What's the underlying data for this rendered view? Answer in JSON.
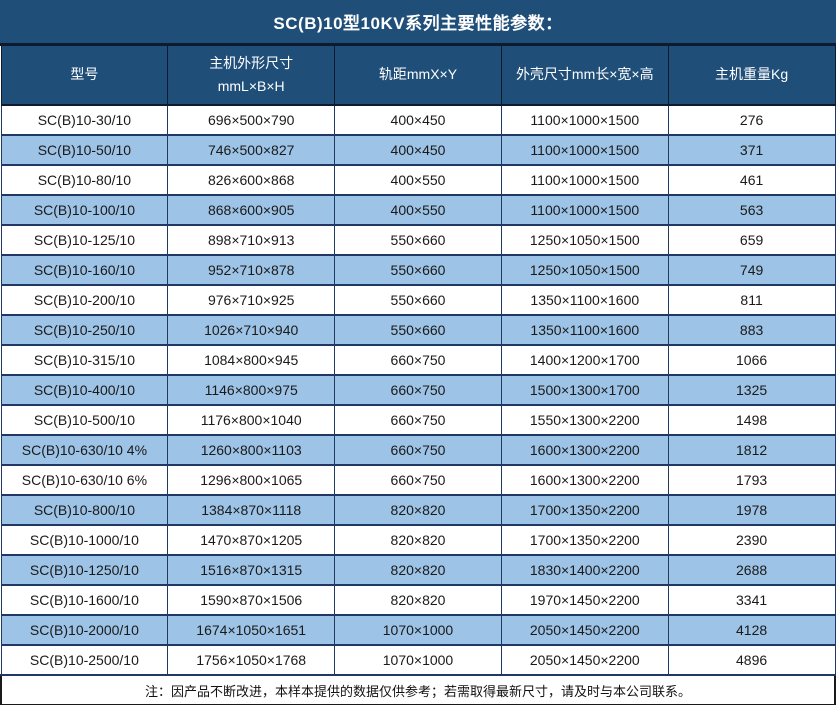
{
  "title": "SC(B)10型10KV系列主要性能参数：",
  "note": "注：因产品不断改进，本样本提供的数据仅供参考；若需取得最新尺寸，请及时与本公司联系。",
  "colors": {
    "title_bg": "#1F4E79",
    "header_bg": "#1F4E79",
    "separator": "#0E1A2E",
    "row_alt_bg": "#9DC3E6",
    "row_bg": "#FFFFFF",
    "border": "#1F3864",
    "header_text": "#FFFFFF",
    "body_text": "#1A1A1A"
  },
  "table": {
    "columns": [
      {
        "line1": "型号",
        "line2": ""
      },
      {
        "line1": "主机外形尺寸",
        "line2": "mmL×B×H"
      },
      {
        "line1": "轨距mmX×Y",
        "line2": ""
      },
      {
        "line1": "外壳尺寸mm长×宽×高",
        "line2": ""
      },
      {
        "line1": "主机重量Kg",
        "line2": ""
      }
    ],
    "rows": [
      {
        "model": "SC(B)10-30/10",
        "host_size": "696×500×790",
        "rail": "400×450",
        "shell_size": "1100×1000×1500",
        "weight": "276"
      },
      {
        "model": "SC(B)10-50/10",
        "host_size": "746×500×827",
        "rail": "400×450",
        "shell_size": "1100×1000×1500",
        "weight": "371"
      },
      {
        "model": "SC(B)10-80/10",
        "host_size": "826×600×868",
        "rail": "400×550",
        "shell_size": "1100×1000×1500",
        "weight": "461"
      },
      {
        "model": "SC(B)10-100/10",
        "host_size": "868×600×905",
        "rail": "400×550",
        "shell_size": "1100×1000×1500",
        "weight": "563"
      },
      {
        "model": "SC(B)10-125/10",
        "host_size": "898×710×913",
        "rail": "550×660",
        "shell_size": "1250×1050×1500",
        "weight": "659"
      },
      {
        "model": "SC(B)10-160/10",
        "host_size": "952×710×878",
        "rail": "550×660",
        "shell_size": "1250×1050×1500",
        "weight": "749"
      },
      {
        "model": "SC(B)10-200/10",
        "host_size": "976×710×925",
        "rail": "550×660",
        "shell_size": "1350×1100×1600",
        "weight": "811"
      },
      {
        "model": "SC(B)10-250/10",
        "host_size": "1026×710×940",
        "rail": "550×660",
        "shell_size": "1350×1100×1600",
        "weight": "883"
      },
      {
        "model": "SC(B)10-315/10",
        "host_size": "1084×800×945",
        "rail": "660×750",
        "shell_size": "1400×1200×1700",
        "weight": "1066"
      },
      {
        "model": "SC(B)10-400/10",
        "host_size": "1146×800×975",
        "rail": "660×750",
        "shell_size": "1500×1300×1700",
        "weight": "1325"
      },
      {
        "model": "SC(B)10-500/10",
        "host_size": "1176×800×1040",
        "rail": "660×750",
        "shell_size": "1550×1300×2200",
        "weight": "1498"
      },
      {
        "model": "SC(B)10-630/10 4%",
        "host_size": "1260×800×1103",
        "rail": "660×750",
        "shell_size": "1600×1300×2200",
        "weight": "1812"
      },
      {
        "model": "SC(B)10-630/10 6%",
        "host_size": "1296×800×1065",
        "rail": "660×750",
        "shell_size": "1600×1300×2200",
        "weight": "1793"
      },
      {
        "model": "SC(B)10-800/10",
        "host_size": "1384×870×1118",
        "rail": "820×820",
        "shell_size": "1700×1350×2200",
        "weight": "1978"
      },
      {
        "model": "SC(B)10-1000/10",
        "host_size": "1470×870×1205",
        "rail": "820×820",
        "shell_size": "1700×1350×2200",
        "weight": "2390"
      },
      {
        "model": "SC(B)10-1250/10",
        "host_size": "1516×870×1315",
        "rail": "820×820",
        "shell_size": "1830×1400×2200",
        "weight": "2688"
      },
      {
        "model": "SC(B)10-1600/10",
        "host_size": "1590×870×1506",
        "rail": "820×820",
        "shell_size": "1970×1450×2200",
        "weight": "3341"
      },
      {
        "model": "SC(B)10-2000/10",
        "host_size": "1674×1050×1651",
        "rail": "1070×1000",
        "shell_size": "2050×1450×2200",
        "weight": "4128"
      },
      {
        "model": "SC(B)10-2500/10",
        "host_size": "1756×1050×1768",
        "rail": "1070×1000",
        "shell_size": "2050×1450×2200",
        "weight": "4896"
      }
    ]
  }
}
